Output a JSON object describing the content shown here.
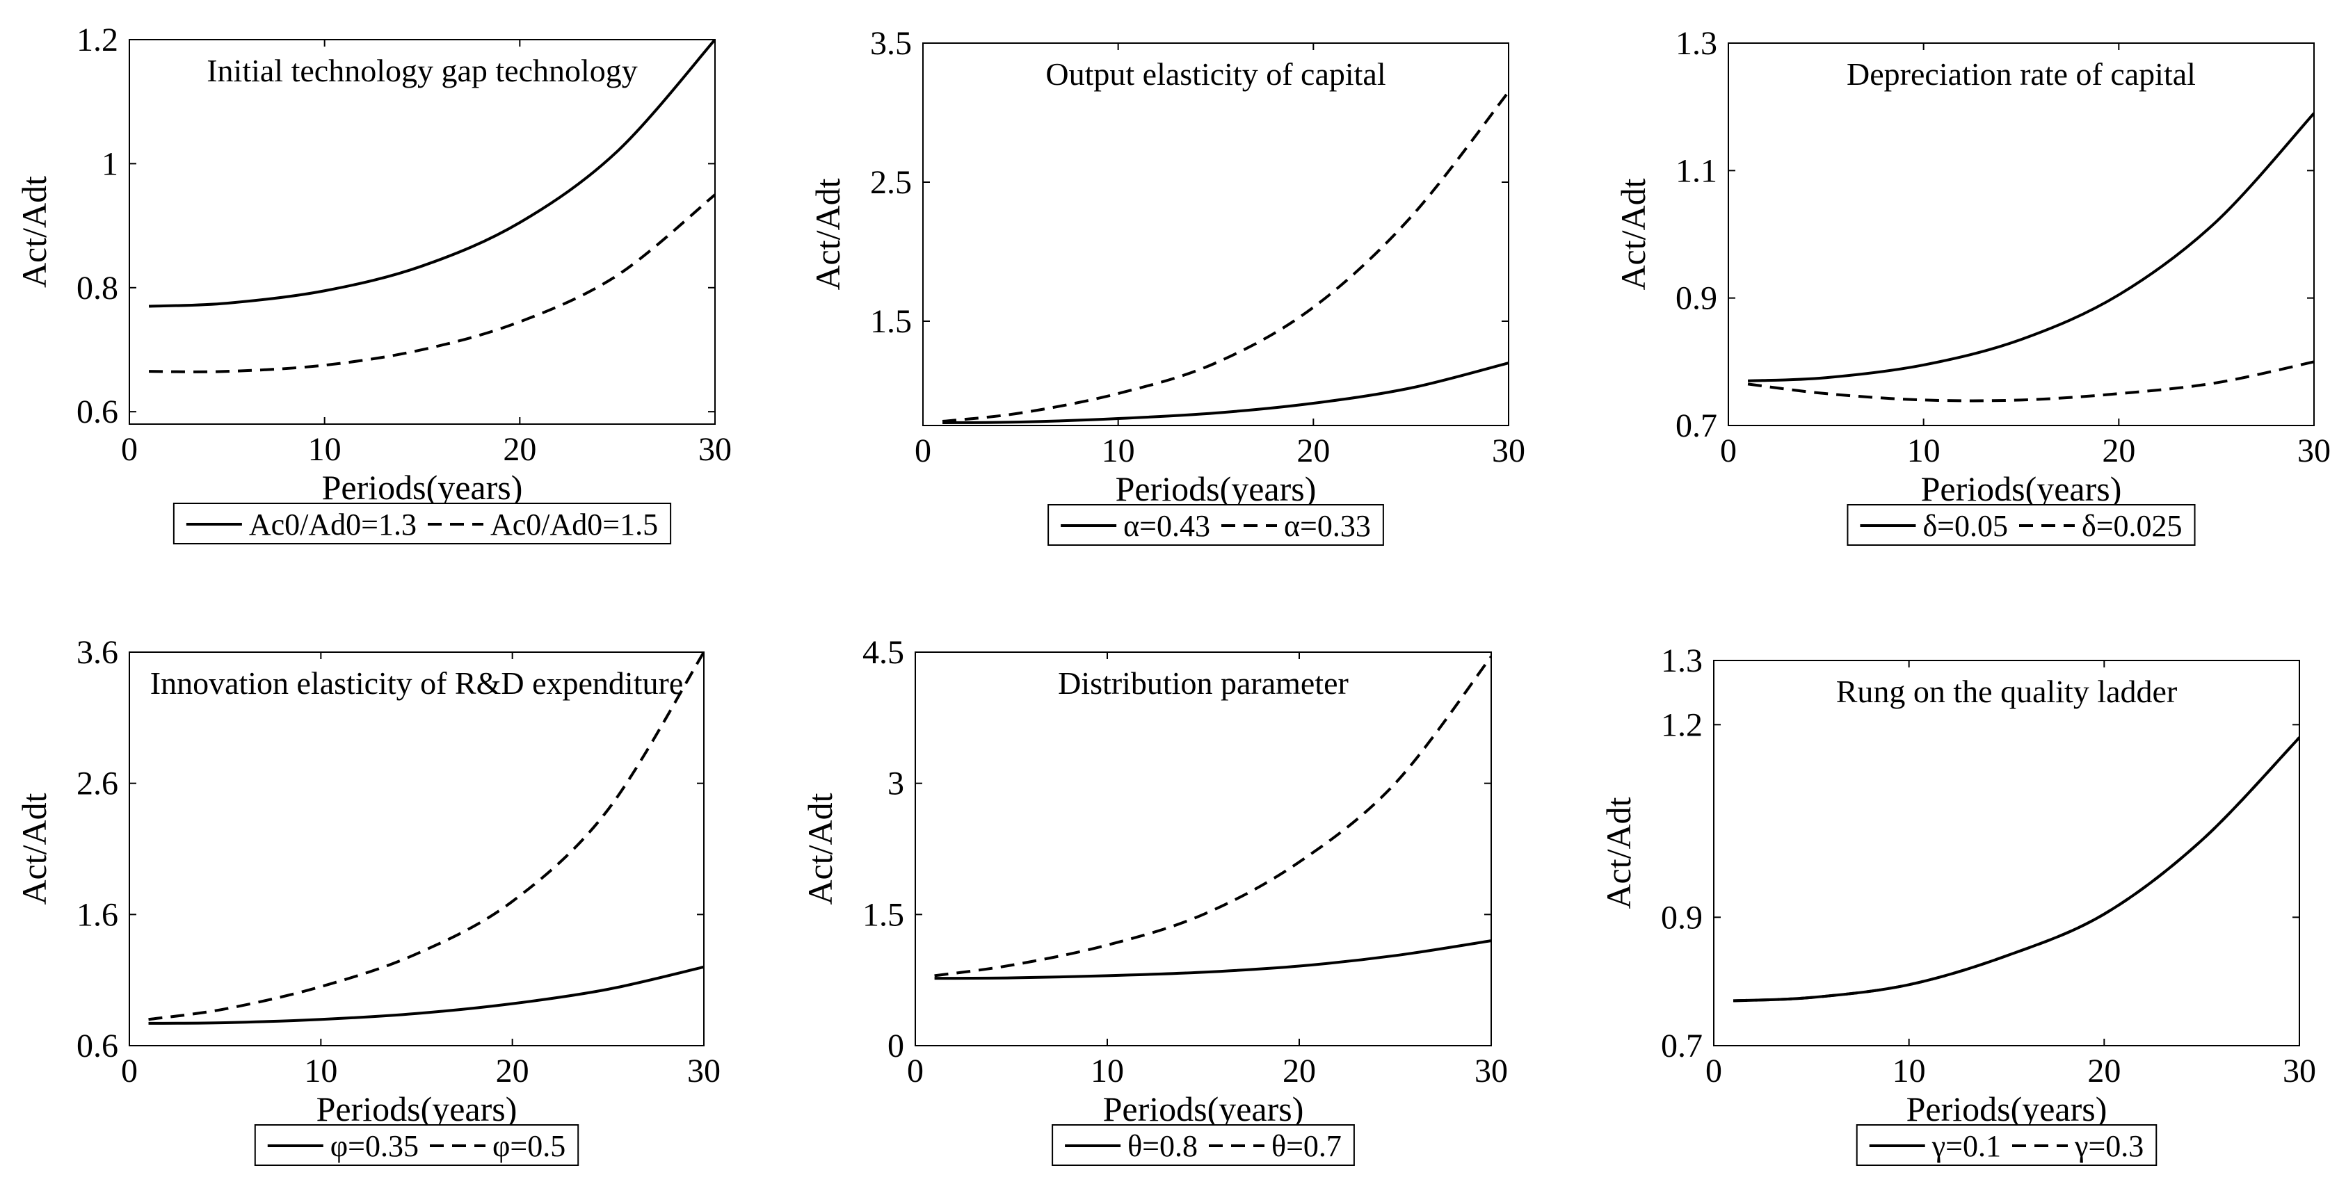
{
  "chart_data": [
    {
      "type": "line",
      "title": "Initial technology gap technology",
      "xlabel": "Periods(years)",
      "ylabel": "Act/Adt",
      "xlim": [
        0,
        30
      ],
      "ylim": [
        0.58,
        1.2
      ],
      "xticks": [
        0,
        10,
        20,
        30
      ],
      "xtick_labels": [
        "0",
        "10",
        "20",
        "30"
      ],
      "yticks": [
        0.6,
        0.8,
        1.0,
        1.2
      ],
      "ytick_labels": [
        "0.6",
        "0.8",
        "1",
        "1.2"
      ],
      "x": [
        1,
        5,
        10,
        15,
        20,
        25,
        30
      ],
      "series": [
        {
          "name": "Ac0/Ad0=1.3",
          "dash": "solid",
          "values": [
            0.77,
            0.775,
            0.795,
            0.835,
            0.905,
            1.02,
            1.2
          ]
        },
        {
          "name": "Ac0/Ad0=1.5",
          "dash": "dashed",
          "values": [
            0.665,
            0.665,
            0.675,
            0.7,
            0.745,
            0.82,
            0.95
          ]
        }
      ],
      "legend_position": "below"
    },
    {
      "type": "line",
      "title": "Output elasticity of capital",
      "xlabel": "Periods(years)",
      "ylabel": "Act/Adt",
      "xlim": [
        0,
        30
      ],
      "ylim": [
        0.75,
        3.5
      ],
      "xticks": [
        0,
        10,
        20,
        30
      ],
      "xtick_labels": [
        "0",
        "10",
        "20",
        "30"
      ],
      "yticks": [
        1.5,
        2.5,
        3.5
      ],
      "ytick_labels": [
        "1.5",
        "2.5",
        "3.5"
      ],
      "x": [
        1,
        5,
        10,
        15,
        20,
        25,
        30
      ],
      "series": [
        {
          "name": "α=0.43",
          "dash": "solid",
          "values": [
            0.77,
            0.775,
            0.8,
            0.84,
            0.91,
            1.02,
            1.2
          ]
        },
        {
          "name": "α=0.33",
          "dash": "dashed",
          "values": [
            0.78,
            0.84,
            0.98,
            1.2,
            1.6,
            2.25,
            3.15
          ]
        }
      ],
      "legend_position": "below"
    },
    {
      "type": "line",
      "title": "Depreciation rate of capital",
      "xlabel": "Periods(years)",
      "ylabel": "Act/Adt",
      "xlim": [
        0,
        30
      ],
      "ylim": [
        0.7,
        1.3
      ],
      "xticks": [
        0,
        10,
        20,
        30
      ],
      "xtick_labels": [
        "0",
        "10",
        "20",
        "30"
      ],
      "yticks": [
        0.7,
        0.9,
        1.1,
        1.3
      ],
      "ytick_labels": [
        "0.7",
        "0.9",
        "1.1",
        "1.3"
      ],
      "x": [
        1,
        5,
        10,
        15,
        20,
        25,
        30
      ],
      "series": [
        {
          "name": "δ=0.05",
          "dash": "solid",
          "values": [
            0.77,
            0.775,
            0.795,
            0.835,
            0.905,
            1.02,
            1.19
          ]
        },
        {
          "name": "δ=0.025",
          "dash": "dashed",
          "values": [
            0.765,
            0.75,
            0.74,
            0.74,
            0.75,
            0.767,
            0.8
          ]
        }
      ],
      "legend_position": "below"
    },
    {
      "type": "line",
      "title": "Innovation elasticity of R&D expenditure",
      "xlabel": "Periods(years)",
      "ylabel": "Act/Adt",
      "xlim": [
        0,
        30
      ],
      "ylim": [
        0.6,
        3.6
      ],
      "xticks": [
        0,
        10,
        20,
        30
      ],
      "xtick_labels": [
        "0",
        "10",
        "20",
        "30"
      ],
      "yticks": [
        0.6,
        1.6,
        2.6,
        3.6
      ],
      "ytick_labels": [
        "0.6",
        "1.6",
        "2.6",
        "3.6"
      ],
      "x": [
        1,
        5,
        10,
        15,
        20,
        25,
        30
      ],
      "series": [
        {
          "name": "φ=0.35",
          "dash": "solid",
          "values": [
            0.77,
            0.775,
            0.8,
            0.845,
            0.92,
            1.03,
            1.2
          ]
        },
        {
          "name": "φ=0.5",
          "dash": "dashed",
          "values": [
            0.8,
            0.88,
            1.05,
            1.3,
            1.7,
            2.4,
            3.6
          ]
        }
      ],
      "legend_position": "below"
    },
    {
      "type": "line",
      "title": "Distribution parameter",
      "xlabel": "Periods(years)",
      "ylabel": "Act/Adt",
      "xlim": [
        0,
        30
      ],
      "ylim": [
        0,
        4.5
      ],
      "xticks": [
        0,
        10,
        20,
        30
      ],
      "xtick_labels": [
        "0",
        "10",
        "20",
        "30"
      ],
      "yticks": [
        0,
        1.5,
        3.0,
        4.5
      ],
      "ytick_labels": [
        "0",
        "1.5",
        "3",
        "4.5"
      ],
      "x": [
        1,
        5,
        10,
        15,
        20,
        25,
        30
      ],
      "series": [
        {
          "name": "θ=0.8",
          "dash": "solid",
          "values": [
            0.77,
            0.775,
            0.8,
            0.84,
            0.91,
            1.03,
            1.2
          ]
        },
        {
          "name": "θ=0.7",
          "dash": "dashed",
          "values": [
            0.8,
            0.92,
            1.15,
            1.5,
            2.1,
            3.0,
            4.45
          ]
        }
      ],
      "legend_position": "below"
    },
    {
      "type": "line",
      "title": "Rung on the quality ladder",
      "xlabel": "Periods(years)",
      "ylabel": "Act/Adt",
      "xlim": [
        0,
        30
      ],
      "ylim": [
        0.7,
        1.3
      ],
      "xticks": [
        0,
        10,
        20,
        30
      ],
      "xtick_labels": [
        "0",
        "10",
        "20",
        "30"
      ],
      "yticks": [
        0.7,
        0.9,
        1.2,
        1.3
      ],
      "ytick_labels": [
        "0.7",
        "0.9",
        "1.2",
        "1.3"
      ],
      "x": [
        1,
        5,
        10,
        15,
        20,
        25,
        30
      ],
      "series": [
        {
          "name": "γ=0.1",
          "dash": "solid",
          "values": [
            0.77,
            0.775,
            0.795,
            0.84,
            0.905,
            1.02,
            1.18
          ]
        },
        {
          "name": "γ=0.3",
          "dash": "dashed",
          "values": [
            0.77,
            0.775,
            0.795,
            0.84,
            0.905,
            1.02,
            1.18
          ]
        }
      ],
      "legend_position": "below"
    }
  ]
}
